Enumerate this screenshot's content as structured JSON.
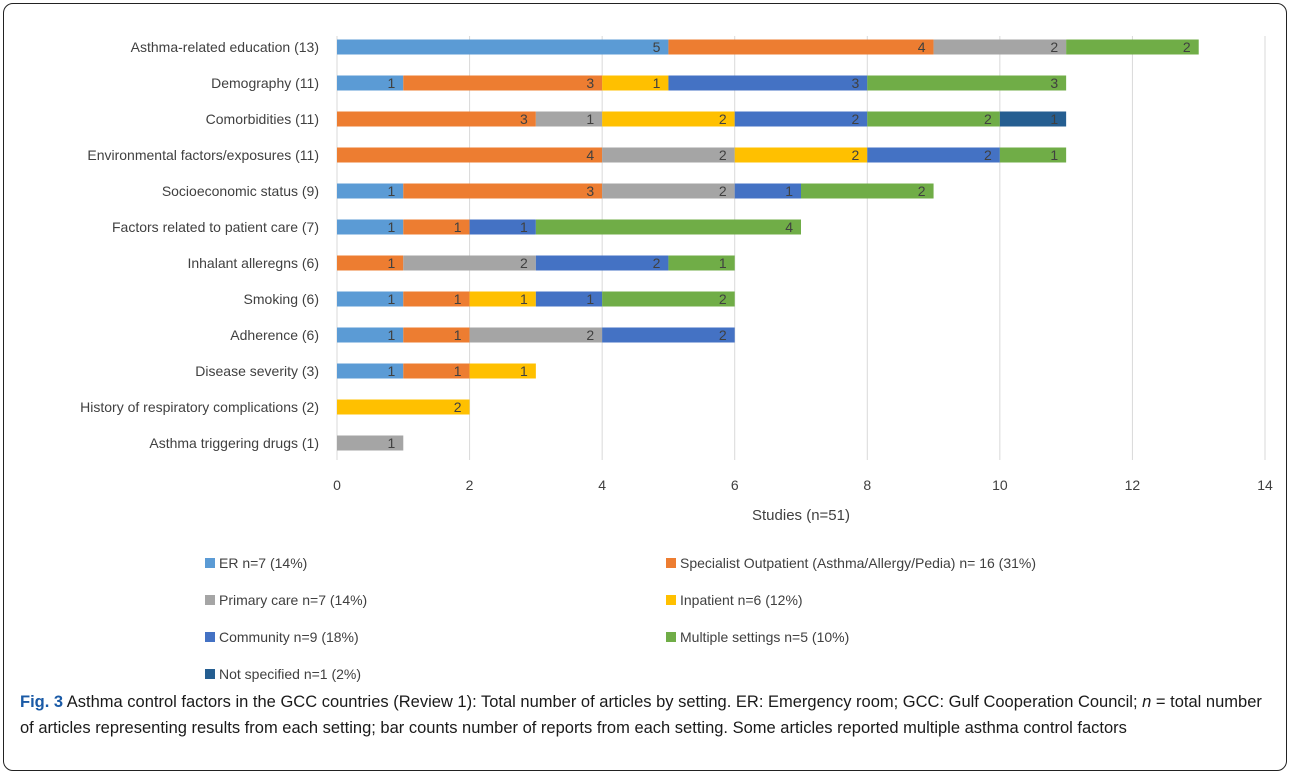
{
  "chart_data": {
    "type": "bar",
    "orientation": "horizontal",
    "stacked": true,
    "xlabel": "Studies (n=51)",
    "xlim": [
      0,
      14
    ],
    "xticks": [
      0,
      2,
      4,
      6,
      8,
      10,
      12,
      14
    ],
    "grid": "vertical",
    "legend_position": "bottom",
    "categories": [
      "Asthma-related education (13)",
      "Demography (11)",
      "Comorbidities (11)",
      "Environmental factors/exposures (11)",
      "Socioeconomic status (9)",
      "Factors related to patient care (7)",
      "Inhalant alleregns (6)",
      "Smoking (6)",
      "Adherence (6)",
      "Disease severity (3)",
      "History of respiratory complications (2)",
      "Asthma triggering drugs (1)"
    ],
    "series": [
      {
        "name": "ER n=7 (14%)",
        "color": "#5b9bd5",
        "values": [
          5,
          1,
          0,
          0,
          1,
          1,
          0,
          1,
          1,
          1,
          0,
          0
        ]
      },
      {
        "name": "Specialist Outpatient (Asthma/Allergy/Pedia) n= 16 (31%)",
        "color": "#ed7d31",
        "values": [
          4,
          3,
          3,
          4,
          3,
          1,
          1,
          1,
          1,
          1,
          0,
          0
        ]
      },
      {
        "name": "Primary care n=7 (14%)",
        "color": "#a5a5a5",
        "values": [
          2,
          0,
          1,
          2,
          2,
          0,
          2,
          0,
          2,
          0,
          0,
          1
        ]
      },
      {
        "name": "Inpatient n=6 (12%)",
        "color": "#ffc000",
        "values": [
          0,
          1,
          2,
          2,
          0,
          0,
          0,
          1,
          0,
          1,
          2,
          0
        ]
      },
      {
        "name": "Community n=9 (18%)",
        "color": "#4472c4",
        "values": [
          0,
          3,
          2,
          2,
          1,
          1,
          2,
          1,
          2,
          0,
          0,
          0
        ]
      },
      {
        "name": "Multiple settings n=5 (10%)",
        "color": "#70ad47",
        "values": [
          2,
          3,
          2,
          1,
          2,
          4,
          1,
          2,
          0,
          0,
          0,
          0
        ]
      },
      {
        "name": "Not specified n=1 (2%)",
        "color": "#255e91",
        "values": [
          0,
          0,
          1,
          0,
          0,
          0,
          0,
          0,
          0,
          0,
          0,
          0
        ]
      }
    ]
  },
  "caption": {
    "label": "Fig. 3",
    "part1": " Asthma control factors in the GCC countries (Review 1): Total number of articles by setting. ER: Emergency room; GCC: Gulf Cooperation Council; ",
    "n": "n",
    "part2": " = total number of articles representing results from each setting; bar counts number of reports from each setting. Some articles reported multiple asthma control factors"
  }
}
